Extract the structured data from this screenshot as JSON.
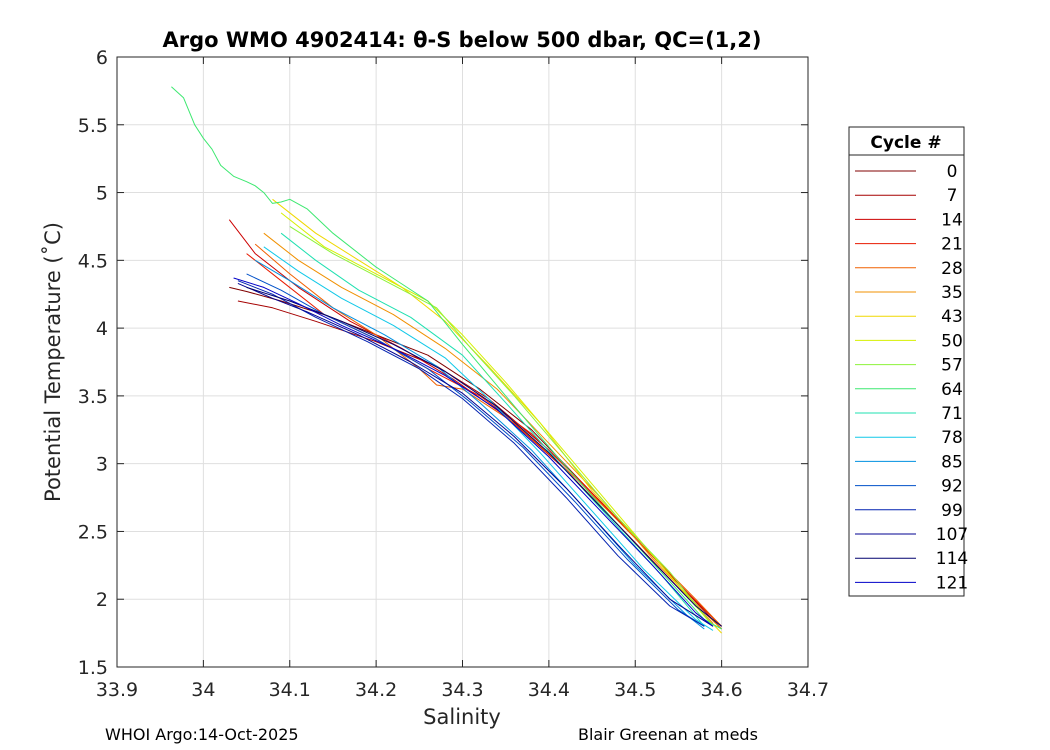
{
  "chart_data": {
    "type": "line",
    "title": "Argo WMO 4902414: θ-S below 500 dbar,  QC=(1,2)",
    "xlabel": "Salinity",
    "ylabel": "Potential Temperature (˚C)",
    "xlim": [
      33.9,
      34.7
    ],
    "ylim": [
      1.5,
      6
    ],
    "xticks": [
      33.9,
      34,
      34.1,
      34.2,
      34.3,
      34.4,
      34.5,
      34.6,
      34.7
    ],
    "yticks": [
      1.5,
      2,
      2.5,
      3,
      3.5,
      4,
      4.5,
      5,
      5.5,
      6
    ],
    "xtick_labels": [
      "33.9",
      "34",
      "34.1",
      "34.2",
      "34.3",
      "34.4",
      "34.5",
      "34.6",
      "34.7"
    ],
    "ytick_labels": [
      "1.5",
      "2",
      "2.5",
      "3",
      "3.5",
      "4",
      "4.5",
      "5",
      "5.5",
      "6"
    ],
    "grid": true,
    "legend_title": "Cycle #",
    "legend_position": "right",
    "legend": [
      {
        "label": "0",
        "color": "#800000"
      },
      {
        "label": "7",
        "color": "#a50000"
      },
      {
        "label": "14",
        "color": "#cc0000"
      },
      {
        "label": "21",
        "color": "#e81a00"
      },
      {
        "label": "28",
        "color": "#f06000"
      },
      {
        "label": "35",
        "color": "#f09000"
      },
      {
        "label": "43",
        "color": "#f0d800"
      },
      {
        "label": "50",
        "color": "#d6f000"
      },
      {
        "label": "57",
        "color": "#8df23a"
      },
      {
        "label": "64",
        "color": "#3de870"
      },
      {
        "label": "71",
        "color": "#1fe0b0"
      },
      {
        "label": "78",
        "color": "#10c8e8"
      },
      {
        "label": "85",
        "color": "#0090e0"
      },
      {
        "label": "92",
        "color": "#0050c8"
      },
      {
        "label": "99",
        "color": "#0020b0"
      },
      {
        "label": "107",
        "color": "#000090"
      },
      {
        "label": "114",
        "color": "#00006e"
      },
      {
        "label": "121",
        "color": "#0000c8"
      }
    ],
    "series": [
      {
        "cycle": 0,
        "color": "#800000",
        "x": [
          34.03,
          34.05,
          34.09,
          34.14,
          34.2,
          34.26,
          34.32,
          34.38,
          34.44,
          34.5,
          34.56,
          34.6
        ],
        "y": [
          4.3,
          4.27,
          4.2,
          4.1,
          3.95,
          3.8,
          3.55,
          3.25,
          2.85,
          2.45,
          2.05,
          1.8
        ]
      },
      {
        "cycle": 7,
        "color": "#a50000",
        "x": [
          34.04,
          34.08,
          34.13,
          34.2,
          34.27,
          34.33,
          34.4,
          34.46,
          34.52,
          34.57,
          34.6
        ],
        "y": [
          4.2,
          4.15,
          4.05,
          3.9,
          3.72,
          3.48,
          3.1,
          2.72,
          2.32,
          1.98,
          1.78
        ]
      },
      {
        "cycle": 14,
        "color": "#cc0000",
        "x": [
          34.03,
          34.06,
          34.11,
          34.17,
          34.23,
          34.29,
          34.35,
          34.42,
          34.48,
          34.54,
          34.59
        ],
        "y": [
          4.8,
          4.55,
          4.3,
          4.05,
          3.85,
          3.62,
          3.35,
          2.95,
          2.55,
          2.15,
          1.82
        ]
      },
      {
        "cycle": 21,
        "color": "#e81a00",
        "x": [
          34.05,
          34.09,
          34.14,
          34.2,
          34.26,
          34.32,
          34.38,
          34.44,
          34.5,
          34.56,
          34.6
        ],
        "y": [
          4.55,
          4.35,
          4.1,
          3.92,
          3.7,
          3.5,
          3.22,
          2.85,
          2.45,
          2.05,
          1.8
        ]
      },
      {
        "cycle": 28,
        "color": "#f06000",
        "x": [
          34.06,
          34.1,
          34.15,
          34.2,
          34.25,
          34.27,
          34.3,
          34.36,
          34.43,
          34.5,
          34.57,
          34.6
        ],
        "y": [
          4.62,
          4.4,
          4.15,
          3.95,
          3.7,
          3.58,
          3.55,
          3.3,
          2.9,
          2.45,
          2.0,
          1.8
        ]
      },
      {
        "cycle": 35,
        "color": "#f09000",
        "x": [
          34.07,
          34.11,
          34.16,
          34.22,
          34.28,
          34.34,
          34.4,
          34.46,
          34.52,
          34.58,
          34.6
        ],
        "y": [
          4.7,
          4.5,
          4.3,
          4.1,
          3.85,
          3.55,
          3.15,
          2.75,
          2.3,
          1.9,
          1.78
        ]
      },
      {
        "cycle": 43,
        "color": "#f0d800",
        "x": [
          34.08,
          34.13,
          34.18,
          34.23,
          34.28,
          34.33,
          34.39,
          34.45,
          34.51,
          34.57,
          34.6
        ],
        "y": [
          4.95,
          4.7,
          4.5,
          4.3,
          4.05,
          3.72,
          3.3,
          2.8,
          2.4,
          1.95,
          1.75
        ]
      },
      {
        "cycle": 50,
        "color": "#d6f000",
        "x": [
          34.09,
          34.14,
          34.2,
          34.26,
          34.3,
          34.35,
          34.41,
          34.47,
          34.53,
          34.59
        ],
        "y": [
          4.85,
          4.6,
          4.4,
          4.2,
          3.95,
          3.6,
          3.15,
          2.7,
          2.25,
          1.8
        ]
      },
      {
        "cycle": 57,
        "color": "#8df23a",
        "x": [
          34.1,
          34.15,
          34.21,
          34.27,
          34.31,
          34.36,
          34.42,
          34.48,
          34.54,
          34.59
        ],
        "y": [
          4.75,
          4.55,
          4.35,
          4.15,
          3.85,
          3.5,
          3.05,
          2.6,
          2.2,
          1.8
        ]
      },
      {
        "cycle": 64,
        "color": "#3de870",
        "x": [
          33.963,
          33.977,
          33.99,
          34.0,
          34.01,
          34.02,
          34.035,
          34.05,
          34.06,
          34.07,
          34.08,
          34.09,
          34.1,
          34.12,
          34.15,
          34.2,
          34.26,
          34.3,
          34.35,
          34.41,
          34.47,
          34.53,
          34.58,
          34.6
        ],
        "y": [
          5.78,
          5.7,
          5.5,
          5.4,
          5.32,
          5.2,
          5.12,
          5.08,
          5.05,
          5.0,
          4.92,
          4.93,
          4.95,
          4.88,
          4.7,
          4.45,
          4.2,
          3.88,
          3.5,
          3.05,
          2.62,
          2.2,
          1.85,
          1.78
        ]
      },
      {
        "cycle": 71,
        "color": "#1fe0b0",
        "x": [
          34.09,
          34.13,
          34.18,
          34.24,
          34.3,
          34.35,
          34.41,
          34.47,
          34.53,
          34.58
        ],
        "y": [
          4.7,
          4.5,
          4.28,
          4.08,
          3.8,
          3.45,
          3.02,
          2.6,
          2.18,
          1.8
        ]
      },
      {
        "cycle": 78,
        "color": "#10c8e8",
        "x": [
          34.07,
          34.11,
          34.16,
          34.22,
          34.28,
          34.33,
          34.39,
          34.45,
          34.51,
          34.57,
          34.59
        ],
        "y": [
          4.6,
          4.42,
          4.22,
          4.02,
          3.78,
          3.48,
          3.08,
          2.65,
          2.22,
          1.85,
          1.77
        ]
      },
      {
        "cycle": 85,
        "color": "#0090e0",
        "x": [
          34.06,
          34.1,
          34.15,
          34.21,
          34.27,
          34.32,
          34.38,
          34.44,
          34.5,
          34.56,
          34.58
        ],
        "y": [
          4.5,
          4.35,
          4.15,
          3.95,
          3.72,
          3.45,
          3.1,
          2.68,
          2.25,
          1.88,
          1.78
        ]
      },
      {
        "cycle": 92,
        "color": "#0050c8",
        "x": [
          34.05,
          34.09,
          34.14,
          34.2,
          34.26,
          34.31,
          34.37,
          34.43,
          34.49,
          34.55,
          34.58
        ],
        "y": [
          4.4,
          4.28,
          4.1,
          3.92,
          3.7,
          3.45,
          3.12,
          2.72,
          2.3,
          1.92,
          1.8
        ]
      },
      {
        "cycle": 99,
        "color": "#0020b0",
        "x": [
          34.04,
          34.08,
          34.13,
          34.19,
          34.25,
          34.3,
          34.36,
          34.42,
          34.48,
          34.54,
          34.58
        ],
        "y": [
          4.35,
          4.25,
          4.08,
          3.9,
          3.7,
          3.48,
          3.15,
          2.75,
          2.32,
          1.95,
          1.8
        ]
      },
      {
        "cycle": 107,
        "color": "#000090",
        "x": [
          34.04,
          34.08,
          34.12,
          34.18,
          34.24,
          34.3,
          34.36,
          34.42,
          34.48,
          34.54,
          34.59
        ],
        "y": [
          4.33,
          4.22,
          4.12,
          3.95,
          3.75,
          3.52,
          3.2,
          2.82,
          2.4,
          2.0,
          1.8
        ]
      },
      {
        "cycle": 114,
        "color": "#00006e",
        "x": [
          34.05,
          34.1,
          34.16,
          34.22,
          34.28,
          34.34,
          34.4,
          34.46,
          34.52,
          34.57,
          34.6
        ],
        "y": [
          4.3,
          4.2,
          4.05,
          3.88,
          3.68,
          3.42,
          3.08,
          2.68,
          2.28,
          1.95,
          1.8
        ]
      },
      {
        "cycle": 121,
        "color": "#0000c8",
        "x": [
          34.035,
          34.07,
          34.11,
          34.16,
          34.22,
          34.28,
          34.34,
          34.4,
          34.46,
          34.52,
          34.57,
          34.59
        ],
        "y": [
          4.37,
          4.3,
          4.18,
          4.02,
          3.85,
          3.65,
          3.4,
          3.05,
          2.65,
          2.25,
          1.9,
          1.8
        ]
      }
    ]
  },
  "footer": {
    "left": "WHOI Argo:14-Oct-2025",
    "right": "Blair Greenan at meds"
  }
}
